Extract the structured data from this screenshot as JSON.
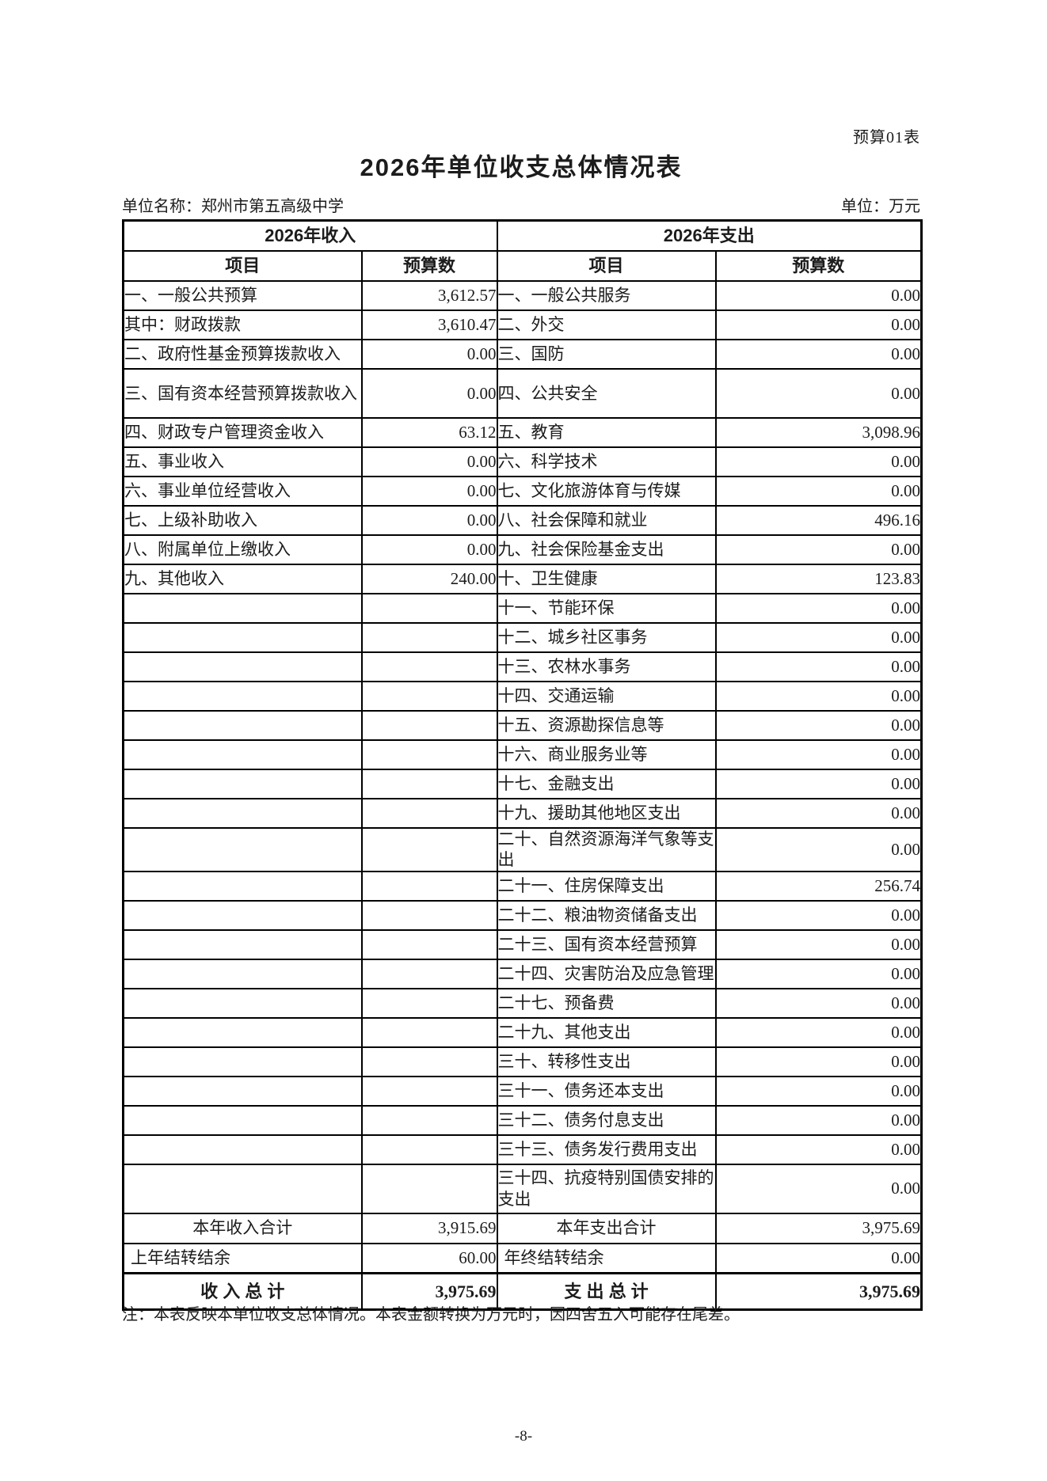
{
  "page": {
    "doc_label": "预算01表",
    "title": "2026年单位收支总体情况表",
    "unit_name": "单位名称：郑州市第五高级中学",
    "unit_of_measure": "单位：万元",
    "note": "注：本表反映本单位收支总体情况。本表金额转换为万元时，因四舍五入可能存在尾差。",
    "page_number": "-8-"
  },
  "table": {
    "income_header": "2026年收入",
    "expense_header": "2026年支出",
    "col_item": "项目",
    "col_budget": "预算数",
    "rows": [
      {
        "li": "一、一般公共预算",
        "lv": "3,612.57",
        "ri": "一、一般公共服务",
        "rv": "0.00"
      },
      {
        "li": "其中：财政拨款",
        "lv": "3,610.47",
        "ri": "二、外交",
        "rv": "0.00"
      },
      {
        "li": "二、政府性基金预算拨款收入",
        "lv": "0.00",
        "ri": "三、国防",
        "rv": "0.00"
      },
      {
        "li": "三、国有资本经营预算拨款收入",
        "lv": "0.00",
        "ri": "四、公共安全",
        "rv": "0.00"
      },
      {
        "li": "四、财政专户管理资金收入",
        "lv": "63.12",
        "ri": "五、教育",
        "rv": "3,098.96"
      },
      {
        "li": "五、事业收入",
        "lv": "0.00",
        "ri": "六、科学技术",
        "rv": "0.00"
      },
      {
        "li": "六、事业单位经营收入",
        "lv": "0.00",
        "ri": "七、文化旅游体育与传媒",
        "rv": "0.00"
      },
      {
        "li": "七、上级补助收入",
        "lv": "0.00",
        "ri": "八、社会保障和就业",
        "rv": "496.16"
      },
      {
        "li": "八、附属单位上缴收入",
        "lv": "0.00",
        "ri": "九、社会保险基金支出",
        "rv": "0.00"
      },
      {
        "li": "九、其他收入",
        "lv": "240.00",
        "ri": "十、卫生健康",
        "rv": "123.83"
      },
      {
        "li": "",
        "lv": "",
        "ri": "十一、节能环保",
        "rv": "0.00"
      },
      {
        "li": "",
        "lv": "",
        "ri": "十二、城乡社区事务",
        "rv": "0.00"
      },
      {
        "li": "",
        "lv": "",
        "ri": "十三、农林水事务",
        "rv": "0.00"
      },
      {
        "li": "",
        "lv": "",
        "ri": "十四、交通运输",
        "rv": "0.00"
      },
      {
        "li": "",
        "lv": "",
        "ri": "十五、资源勘探信息等",
        "rv": "0.00"
      },
      {
        "li": "",
        "lv": "",
        "ri": "十六、商业服务业等",
        "rv": "0.00"
      },
      {
        "li": "",
        "lv": "",
        "ri": "十七、金融支出",
        "rv": "0.00"
      },
      {
        "li": "",
        "lv": "",
        "ri": "十九、援助其他地区支出",
        "rv": "0.00"
      },
      {
        "li": "",
        "lv": "",
        "ri": "二十、自然资源海洋气象等支出",
        "rv": "0.00"
      },
      {
        "li": "",
        "lv": "",
        "ri": "二十一、住房保障支出",
        "rv": "256.74"
      },
      {
        "li": "",
        "lv": "",
        "ri": "二十二、粮油物资储备支出",
        "rv": "0.00"
      },
      {
        "li": "",
        "lv": "",
        "ri": "二十三、国有资本经营预算",
        "rv": "0.00"
      },
      {
        "li": "",
        "lv": "",
        "ri": "二十四、灾害防治及应急管理",
        "rv": "0.00"
      },
      {
        "li": "",
        "lv": "",
        "ri": "二十七、预备费",
        "rv": "0.00"
      },
      {
        "li": "",
        "lv": "",
        "ri": "二十九、其他支出",
        "rv": "0.00"
      },
      {
        "li": "",
        "lv": "",
        "ri": "三十、转移性支出",
        "rv": "0.00"
      },
      {
        "li": "",
        "lv": "",
        "ri": "三十一、债务还本支出",
        "rv": "0.00"
      },
      {
        "li": "",
        "lv": "",
        "ri": "三十二、债务付息支出",
        "rv": "0.00"
      },
      {
        "li": "",
        "lv": "",
        "ri": "三十三、债务发行费用支出",
        "rv": "0.00"
      },
      {
        "li": "",
        "lv": "",
        "ri": "三十四、抗疫特别国债安排的支出",
        "rv": "0.00"
      }
    ],
    "summary": {
      "income_total_label": "本年收入合计",
      "income_total": "3,915.69",
      "expense_total_label": "本年支出合计",
      "expense_total": "3,975.69",
      "carryover_in_label": "上年结转结余",
      "carryover_in": "60.00",
      "carryover_out_label": "年终结转结余",
      "carryover_out": "0.00",
      "grand_income_label": "收 入 总 计",
      "grand_income": "3,975.69",
      "grand_expense_label": "支 出 总 计",
      "grand_expense": "3,975.69"
    }
  }
}
